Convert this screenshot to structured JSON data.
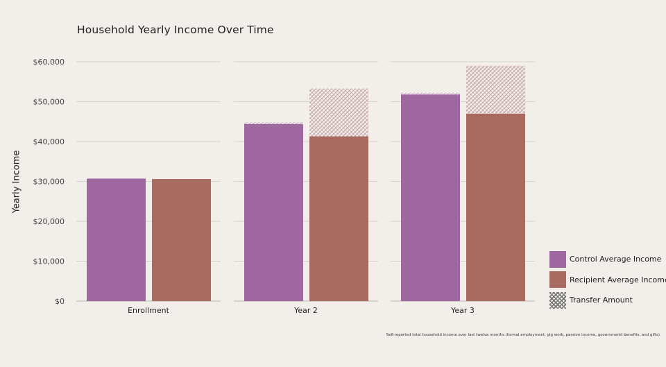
{
  "chart_data": {
    "type": "bar",
    "title": "Household Yearly Income Over Time",
    "ylabel": "Yearly Income",
    "xlabel": "",
    "ylim": [
      0,
      60000
    ],
    "yticks": [
      "$0",
      "$10,000",
      "$20,000",
      "$30,000",
      "$40,000",
      "$50,000",
      "$60,000"
    ],
    "ytick_values": [
      0,
      10000,
      20000,
      30000,
      40000,
      50000,
      60000
    ],
    "categories": [
      "Enrollment",
      "Year 2",
      "Year 3"
    ],
    "series": [
      {
        "name": "Control Average Income",
        "values": [
          30700,
          44400,
          51800
        ],
        "color": "#9e67a0"
      },
      {
        "name": "Recipient Average Income",
        "values": [
          30600,
          41300,
          47000
        ],
        "color": "#a86b5f"
      }
    ],
    "transfer_amount": {
      "name": "Transfer Amount",
      "control_values": [
        0,
        400,
        400
      ],
      "recipient_values": [
        0,
        12000,
        12000
      ],
      "color": "#c9a5ad"
    },
    "grid": true,
    "legend_position": "bottom-right"
  },
  "footnote": "Self-reported total household income over last twelve months (formal employment, gig work, passive income, governmentt benefits, and gifts)"
}
